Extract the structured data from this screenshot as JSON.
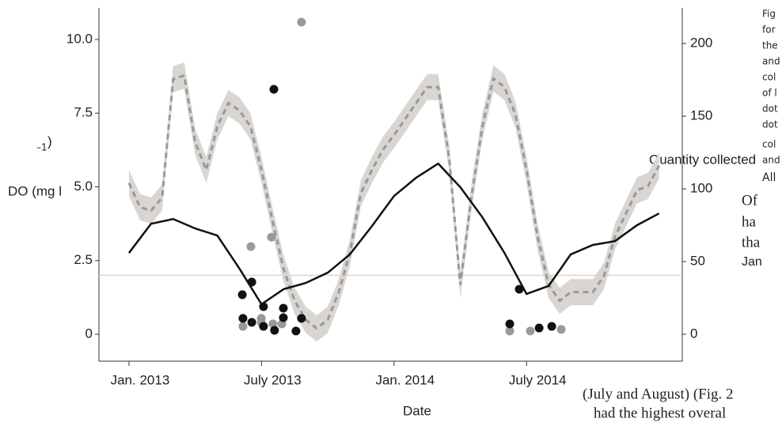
{
  "chart_data": {
    "type": "line",
    "x_label": "Date",
    "y_label": "DO (mg l",
    "y_label_superscript": "–1",
    "y_label_close": ")",
    "y2_label": "Quantity collected",
    "xlim": [
      -1.36,
      25.05
    ],
    "xticks": [
      {
        "value": 0,
        "label": "Jan. 2013"
      },
      {
        "value": 6,
        "label": "July 2013"
      },
      {
        "value": 12,
        "label": "Jan. 2014"
      },
      {
        "value": 18,
        "label": "July 2014"
      }
    ],
    "ylim": [
      -0.91,
      11.07
    ],
    "yticks": [
      0,
      2.5,
      {
        "value": 5,
        "label": "5.0"
      },
      7.5,
      {
        "value": 10,
        "label": "10.0"
      }
    ],
    "y2lim": [
      -18.5,
      224.5
    ],
    "y2ticks": [
      0,
      50,
      100,
      150,
      200
    ],
    "reference_line": {
      "value": 2.0,
      "color": "#e9cfc6"
    },
    "series": [
      {
        "type": "line",
        "style": "dashed",
        "color": "#999999",
        "band_color": "#d9d6d2",
        "band_halfwidth": 9,
        "axis": "y2",
        "x": [
          0,
          0.5,
          1,
          1.5,
          2,
          2.5,
          3,
          3.5,
          4,
          4.5,
          5,
          5.5,
          6,
          6.5,
          7,
          7.5,
          8,
          8.5,
          9,
          9.5,
          10,
          10.5,
          11,
          11.5,
          12,
          12.5,
          13,
          13.5,
          14,
          14.5,
          15,
          15.5,
          16,
          16.5,
          17,
          17.5,
          18,
          18.5,
          19,
          19.5,
          20,
          21,
          21.5,
          22,
          22.5,
          23,
          23.5,
          24
        ],
        "values": [
          104,
          87.5,
          85,
          94,
          175.5,
          178,
          132,
          113,
          143,
          159,
          154,
          143,
          113,
          78,
          45,
          23,
          10,
          4,
          10,
          29,
          56,
          97,
          113,
          127,
          137,
          148,
          159,
          170,
          170,
          121,
          34,
          94,
          143,
          176,
          170,
          151,
          113,
          67,
          34,
          23,
          29,
          29,
          40,
          67,
          83,
          99,
          102,
          116
        ]
      },
      {
        "type": "line",
        "style": "solid",
        "color": "#111111",
        "x": [
          0,
          1,
          2,
          3,
          4,
          5,
          6,
          7,
          8,
          9,
          10,
          11,
          12,
          13,
          14,
          15,
          16,
          17,
          18,
          19,
          20,
          21,
          22,
          23,
          24
        ],
        "values": [
          2.76,
          3.75,
          3.91,
          3.59,
          3.35,
          2.23,
          1.02,
          1.53,
          1.74,
          2.09,
          2.71,
          3.67,
          4.69,
          5.31,
          5.79,
          4.99,
          3.97,
          2.76,
          1.37,
          1.64,
          2.71,
          3.03,
          3.16,
          3.7,
          4.1
        ]
      },
      {
        "type": "scatter",
        "color": "#999999",
        "axis": "y2",
        "x": [
          5.16,
          5.52,
          5.99,
          5.99,
          6.45,
          6.52,
          6.92,
          7.81,
          17.24,
          18.17,
          19.57
        ],
        "values": [
          5.4,
          60.3,
          10.9,
          8.2,
          66.8,
          7.1,
          7.1,
          214.7,
          2.2,
          2.2,
          3.3
        ]
      },
      {
        "type": "scatter",
        "color": "#111111",
        "axis": "y2",
        "x": [
          5.13,
          5.16,
          5.56,
          5.56,
          6.09,
          6.09,
          6.56,
          6.59,
          6.99,
          6.99,
          7.56,
          7.81,
          17.67,
          17.24,
          18.57,
          19.14
        ],
        "values": [
          27.2,
          10.9,
          35.9,
          8.2,
          19.0,
          5.4,
          168.5,
          2.7,
          17.9,
          11.4,
          2.2,
          10.9,
          31.0,
          7.1,
          4.3,
          5.4
        ]
      }
    ]
  },
  "page_text": {
    "caption_fragments": [
      "Fig",
      "for",
      "the",
      "and",
      "col",
      "of l",
      "dot",
      "dot",
      "col",
      "and"
    ],
    "body_fragments": [
      "All",
      "Of",
      "ha",
      "tha",
      "Jan"
    ],
    "bottom_lines": [
      "(July and August) (Fig. 2",
      "had  the  highest  overal"
    ]
  }
}
